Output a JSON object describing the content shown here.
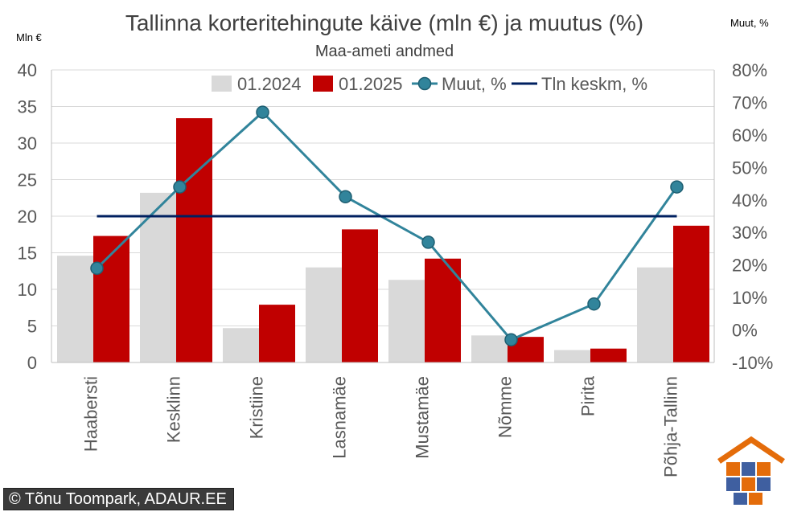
{
  "chart_data": {
    "type": "bar",
    "title": "Tallinna korteritehingute käive (mln €) ja muutus (%)",
    "subtitle": "Maa-ameti andmed",
    "ylabel": "Mln €",
    "y2label": "Muut, %",
    "ylim": [
      0,
      40
    ],
    "yticks": [
      0,
      5,
      10,
      15,
      20,
      25,
      30,
      35,
      40
    ],
    "y2lim": [
      -10,
      80
    ],
    "y2ticks": [
      -10,
      0,
      10,
      20,
      30,
      40,
      50,
      60,
      70,
      80
    ],
    "y2tick_suffix": "%",
    "grid": true,
    "legend_position": "top",
    "categories": [
      "Haabersti",
      "Kesklinn",
      "Kristiine",
      "Lasnamäe",
      "Mustamäe",
      "Nõmme",
      "Pirita",
      "Põhja-Tallinn"
    ],
    "series": [
      {
        "name": "01.2024",
        "kind": "bar",
        "axis": "left",
        "color": "#d9d9d9",
        "values": [
          14.6,
          23.2,
          4.7,
          13.0,
          11.3,
          3.7,
          1.7,
          13.0
        ]
      },
      {
        "name": "01.2025",
        "kind": "bar",
        "axis": "left",
        "color": "#c00000",
        "values": [
          17.3,
          33.4,
          7.9,
          18.2,
          14.2,
          3.5,
          1.9,
          18.7
        ]
      },
      {
        "name": "Muut, %",
        "kind": "line-markers",
        "axis": "right",
        "color": "#31849b",
        "values": [
          19,
          44,
          67,
          41,
          27,
          -3,
          8,
          44
        ]
      },
      {
        "name": "Tln keskm, %",
        "kind": "line",
        "axis": "right",
        "color": "#002060",
        "values": [
          35,
          35,
          35,
          35,
          35,
          35,
          35,
          35
        ]
      }
    ]
  },
  "credit": "© Tõnu Toompark, ADAUR.EE",
  "logo": "adaur-house-puzzle-logo",
  "colors": {
    "grid": "#d9d9d9",
    "text": "#595959",
    "title": "#404040"
  }
}
